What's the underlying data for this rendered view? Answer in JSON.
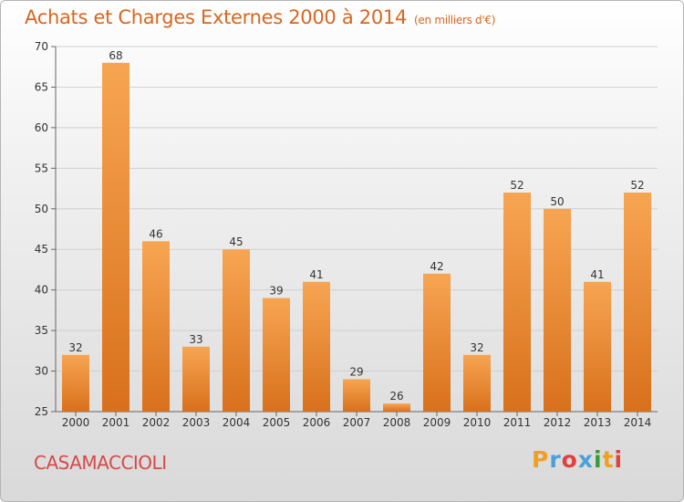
{
  "chart_data": {
    "type": "bar",
    "title": "Achats et Charges Externes 2000 à 2014",
    "subtitle": "(en milliers d'€)",
    "categories": [
      "2000",
      "2001",
      "2002",
      "2003",
      "2004",
      "2005",
      "2006",
      "2007",
      "2008",
      "2009",
      "2010",
      "2011",
      "2012",
      "2013",
      "2014"
    ],
    "values": [
      32,
      68,
      46,
      33,
      45,
      39,
      41,
      29,
      26,
      42,
      32,
      52,
      50,
      41,
      52
    ],
    "ylim": [
      25,
      70
    ],
    "yticks": [
      25,
      30,
      35,
      40,
      45,
      50,
      55,
      60,
      65,
      70
    ],
    "grid": true,
    "bar_color": "#f08a2e"
  },
  "commune": "CASAMACCIOLI",
  "logo": {
    "letters": [
      "P",
      "r",
      "o",
      "x",
      "i",
      "t",
      "i"
    ],
    "colors": [
      "#f0a020",
      "#4aa0d8",
      "#e04040",
      "#4aa0d8",
      "#3a9a3a",
      "#f0a020",
      "#e04040"
    ]
  }
}
